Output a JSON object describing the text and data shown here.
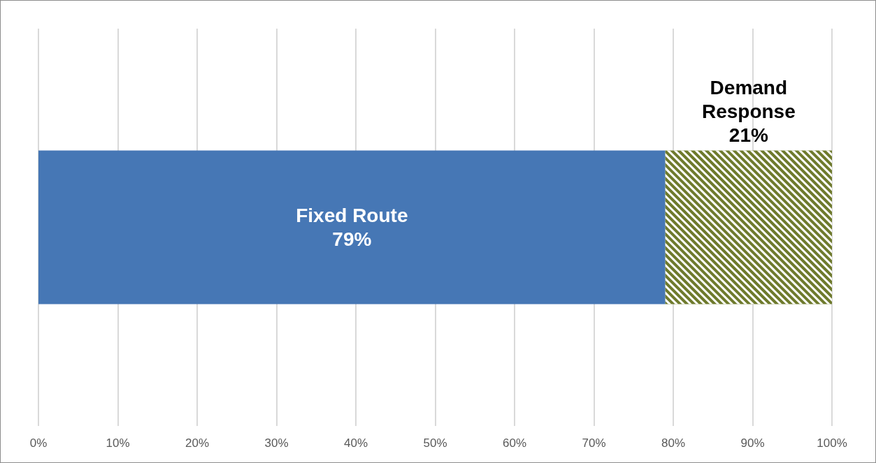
{
  "chart_data": {
    "type": "bar",
    "orientation": "horizontal",
    "stacked": true,
    "categories": [
      null
    ],
    "series": [
      {
        "name": "Fixed Route",
        "color": "#4677b5",
        "values": [
          79
        ],
        "value_labels": [
          "79%"
        ]
      },
      {
        "name": "Demand Response",
        "color": "#6e7a2c",
        "values": [
          21
        ],
        "value_labels": [
          "21%"
        ]
      }
    ],
    "xlim": [
      0,
      100
    ],
    "xticks": [
      {
        "value": 0,
        "label": "0%"
      },
      {
        "value": 10,
        "label": "10%"
      },
      {
        "value": 20,
        "label": "20%"
      },
      {
        "value": 30,
        "label": "30%"
      },
      {
        "value": 40,
        "label": "40%"
      },
      {
        "value": 50,
        "label": "50%"
      },
      {
        "value": 60,
        "label": "60%"
      },
      {
        "value": 70,
        "label": "70%"
      },
      {
        "value": 80,
        "label": "80%"
      },
      {
        "value": 90,
        "label": "90%"
      },
      {
        "value": 100,
        "label": "100%"
      }
    ],
    "grid": "x",
    "legend": false
  }
}
